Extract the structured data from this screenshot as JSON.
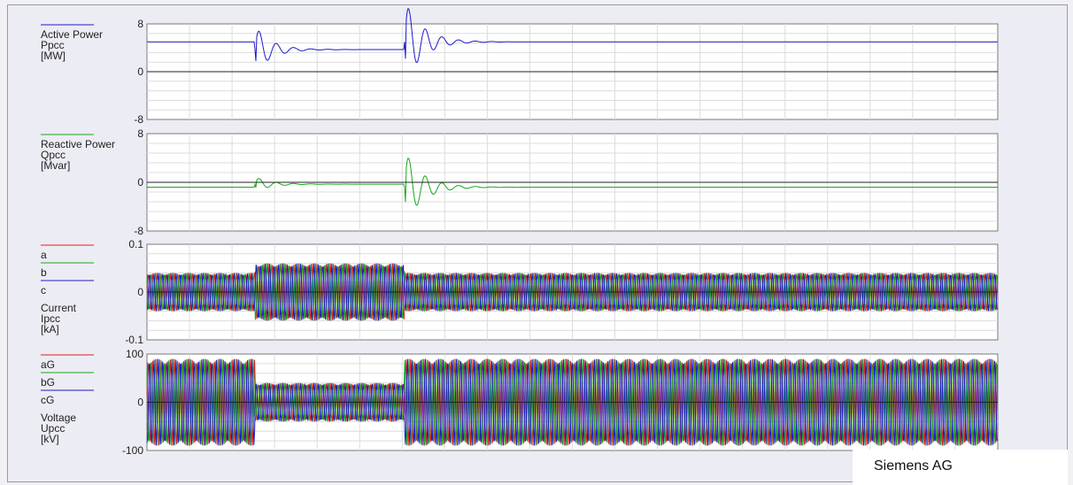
{
  "watermark": "Siemens AG",
  "chart_data": [
    {
      "type": "line",
      "legend": [
        "Active Power",
        "Ppcc",
        "[MW]"
      ],
      "ylim": [
        -8,
        8
      ],
      "yticks": [
        "8",
        "0",
        "-8"
      ],
      "grid": true,
      "series": [
        {
          "name": "Active Power",
          "color": "#1a1acc",
          "description_values": {
            "pre_fault": 5,
            "during_fault": 3.7,
            "post_fault": 5
          }
        }
      ]
    },
    {
      "type": "line",
      "legend": [
        "Reactive Power",
        "Qpcc",
        "[Mvar]"
      ],
      "ylim": [
        -8,
        8
      ],
      "yticks": [
        "8",
        "0",
        "-8"
      ],
      "grid": true,
      "series": [
        {
          "name": "Reactive Power",
          "color": "#18a818",
          "description_values": {
            "pre_fault": -0.8,
            "during_fault": -0.3,
            "post_fault": -0.8
          }
        }
      ]
    },
    {
      "type": "line",
      "legend": [
        "a",
        "b",
        "c",
        "Current",
        "Ipcc",
        "[kA]"
      ],
      "ylim": [
        -0.1,
        0.1
      ],
      "yticks": [
        "0.1",
        "0",
        "-0.1"
      ],
      "grid": true,
      "series": [
        {
          "name": "a",
          "color": "#e02020"
        },
        {
          "name": "b",
          "color": "#18a818"
        },
        {
          "name": "c",
          "color": "#1a1acc"
        }
      ],
      "amplitude": {
        "pre_fault": 0.04,
        "during_fault": 0.06,
        "post_fault": 0.04
      }
    },
    {
      "type": "line",
      "legend": [
        "aG",
        "bG",
        "cG",
        "Voltage",
        "Upcc",
        "[kV]"
      ],
      "ylim": [
        -100,
        100
      ],
      "yticks": [
        "100",
        "0",
        "-100"
      ],
      "grid": true,
      "series": [
        {
          "name": "aG",
          "color": "#e02020"
        },
        {
          "name": "bG",
          "color": "#18a818"
        },
        {
          "name": "cG",
          "color": "#1a1acc"
        }
      ],
      "amplitude": {
        "pre_fault": 90,
        "during_fault": 40,
        "post_fault": 90
      }
    }
  ]
}
